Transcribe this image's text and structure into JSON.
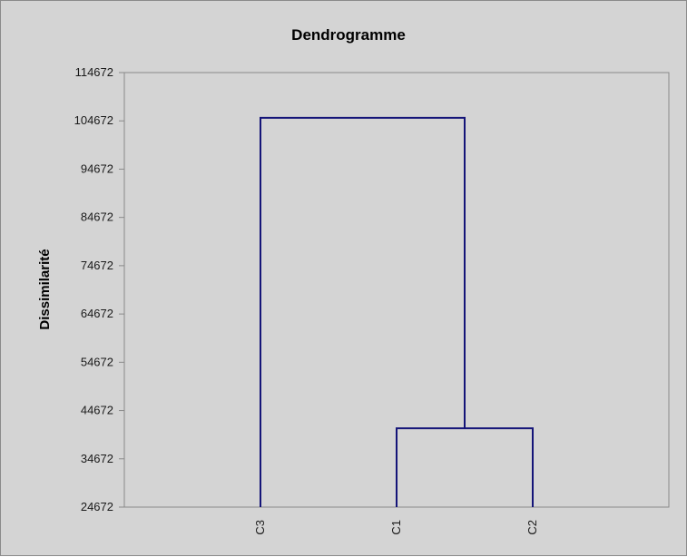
{
  "chart_data": {
    "type": "dendrogram",
    "title": "Dendrogramme",
    "xlabel": "",
    "ylabel": "Dissimilarité",
    "ylim": [
      24672,
      114672
    ],
    "yticks": [
      24672,
      34672,
      44672,
      54672,
      64672,
      74672,
      84672,
      94672,
      104672,
      114672
    ],
    "leaves": [
      "C3",
      "C1",
      "C2"
    ],
    "merges": [
      {
        "children": [
          "C1",
          "C2"
        ],
        "height": 41000
      },
      {
        "children": [
          "C3",
          "C1+C2"
        ],
        "height": 105300
      }
    ],
    "grid": false,
    "line_color": "#141478"
  }
}
